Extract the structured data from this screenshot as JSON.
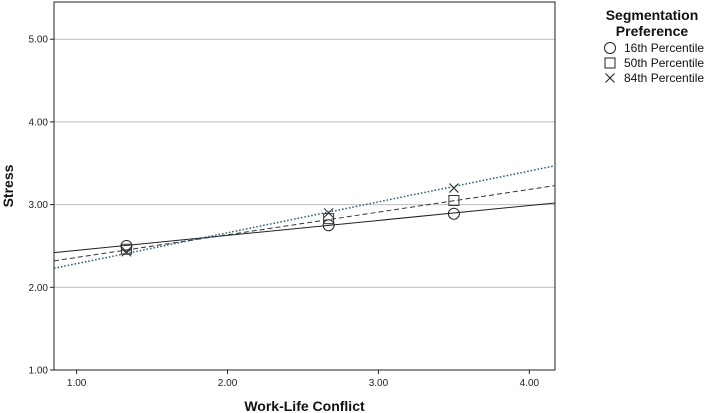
{
  "chart_data": {
    "type": "scatter",
    "title": "",
    "xlabel": "Work-Life Conflict",
    "ylabel": "Stress",
    "xlim": [
      0.85,
      4.17
    ],
    "ylim": [
      1.0,
      5.45
    ],
    "x_ticks": [
      "1.00",
      "2.00",
      "3.00",
      "4.00"
    ],
    "x_tick_values": [
      1.0,
      2.0,
      3.0,
      4.0
    ],
    "y_ticks": [
      "1.00",
      "2.00",
      "3.00",
      "4.00",
      "5.00"
    ],
    "y_tick_values": [
      1.0,
      2.0,
      3.0,
      4.0,
      5.0
    ],
    "grid": "horizontal",
    "legend": {
      "title_lines": [
        "Segmentation",
        "Preference"
      ],
      "placement": "right"
    },
    "series": [
      {
        "name": "16th Percentile",
        "marker": "circle",
        "line_style": "solid",
        "color": "#222222",
        "points": [
          {
            "x": 1.33,
            "y": 2.5
          },
          {
            "x": 2.67,
            "y": 2.75
          },
          {
            "x": 3.5,
            "y": 2.89
          }
        ],
        "fit": {
          "x": [
            0.85,
            4.17
          ],
          "y": [
            2.42,
            3.02
          ]
        }
      },
      {
        "name": "50th Percentile",
        "marker": "square",
        "line_style": "dashed",
        "color": "#333333",
        "points": [
          {
            "x": 1.33,
            "y": 2.46
          },
          {
            "x": 2.67,
            "y": 2.83
          },
          {
            "x": 3.5,
            "y": 3.05
          }
        ],
        "fit": {
          "x": [
            0.85,
            4.17
          ],
          "y": [
            2.32,
            3.23
          ]
        }
      },
      {
        "name": "84th Percentile",
        "marker": "x",
        "line_style": "dotted",
        "color": "#1f5a78",
        "points": [
          {
            "x": 1.33,
            "y": 2.43
          },
          {
            "x": 2.67,
            "y": 2.9
          },
          {
            "x": 3.5,
            "y": 3.2
          }
        ],
        "fit": {
          "x": [
            0.85,
            4.17
          ],
          "y": [
            2.23,
            3.47
          ]
        }
      }
    ]
  }
}
